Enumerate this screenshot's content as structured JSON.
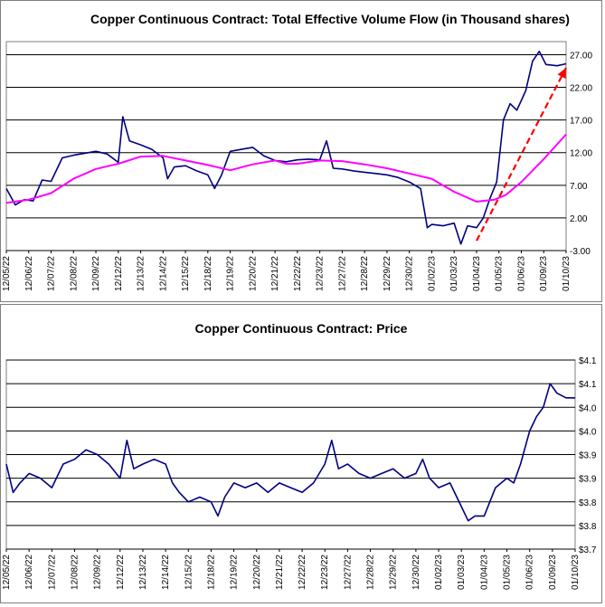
{
  "chart_data": [
    {
      "type": "line",
      "title": "Copper Continuous Contract: Total Effective Volume Flow (in Thousand shares)",
      "xlabel": "",
      "ylabel": "",
      "ylim": [
        -3.0,
        29.0
      ],
      "y_ticks": [
        "27.00",
        "22.00",
        "17.00",
        "12.00",
        "7.00",
        "2.00",
        "-3.00"
      ],
      "y_tick_values": [
        27,
        22,
        17,
        12,
        7,
        2,
        -3
      ],
      "grid": true,
      "x_ticks": [
        "12/05/22",
        "12/06/22",
        "12/07/22",
        "12/08/22",
        "12/09/22",
        "12/12/22",
        "12/13/22",
        "12/14/22",
        "12/15/22",
        "12/18/22",
        "12/19/22",
        "12/20/22",
        "12/21/22",
        "12/22/22",
        "12/23/22",
        "12/27/22",
        "12/28/22",
        "12/29/22",
        "12/30/22",
        "01/02/23",
        "01/03/23",
        "01/04/23",
        "01/05/23",
        "01/06/23",
        "01/09/23",
        "01/10/23"
      ],
      "series": [
        {
          "color": "#000080",
          "points": [
            [
              0,
              6.5
            ],
            [
              0.4,
              4.0
            ],
            [
              0.8,
              4.8
            ],
            [
              1.2,
              4.6
            ],
            [
              1.6,
              7.8
            ],
            [
              2.0,
              7.6
            ],
            [
              2.5,
              11.2
            ],
            [
              3.0,
              11.6
            ],
            [
              3.5,
              11.9
            ],
            [
              4.0,
              12.2
            ],
            [
              4.5,
              11.8
            ],
            [
              5.0,
              10.5
            ],
            [
              5.2,
              17.5
            ],
            [
              5.5,
              13.8
            ],
            [
              6.0,
              13.2
            ],
            [
              6.5,
              12.5
            ],
            [
              7.0,
              11.2
            ],
            [
              7.2,
              8.0
            ],
            [
              7.5,
              9.8
            ],
            [
              8.0,
              10.0
            ],
            [
              8.5,
              9.2
            ],
            [
              9.0,
              8.6
            ],
            [
              9.3,
              6.5
            ],
            [
              9.6,
              8.5
            ],
            [
              10.0,
              12.2
            ],
            [
              10.5,
              12.5
            ],
            [
              11.0,
              12.8
            ],
            [
              11.5,
              11.5
            ],
            [
              12.0,
              10.8
            ],
            [
              12.5,
              10.6
            ],
            [
              13.0,
              10.9
            ],
            [
              13.5,
              11.0
            ],
            [
              14.0,
              10.9
            ],
            [
              14.3,
              13.8
            ],
            [
              14.6,
              9.6
            ],
            [
              15.0,
              9.5
            ],
            [
              15.5,
              9.2
            ],
            [
              16.0,
              9.0
            ],
            [
              16.5,
              8.8
            ],
            [
              17.0,
              8.6
            ],
            [
              17.5,
              8.2
            ],
            [
              18.0,
              7.5
            ],
            [
              18.5,
              6.5
            ],
            [
              18.8,
              0.5
            ],
            [
              19.0,
              1.0
            ],
            [
              19.5,
              0.8
            ],
            [
              20.0,
              1.2
            ],
            [
              20.3,
              -2.0
            ],
            [
              20.6,
              0.8
            ],
            [
              21.0,
              0.5
            ],
            [
              21.3,
              2.0
            ],
            [
              21.6,
              5.0
            ],
            [
              21.9,
              7.5
            ],
            [
              22.2,
              17.0
            ],
            [
              22.5,
              19.5
            ],
            [
              22.8,
              18.5
            ],
            [
              23.0,
              20.0
            ],
            [
              23.2,
              21.5
            ],
            [
              23.5,
              26.0
            ],
            [
              23.8,
              27.5
            ],
            [
              24.1,
              25.5
            ],
            [
              24.6,
              25.3
            ],
            [
              25.0,
              25.6
            ]
          ]
        },
        {
          "color": "#ff00ff",
          "points": [
            [
              0,
              4.3
            ],
            [
              1.0,
              4.8
            ],
            [
              2.0,
              5.8
            ],
            [
              3.0,
              8.0
            ],
            [
              4.0,
              9.5
            ],
            [
              5.0,
              10.3
            ],
            [
              6.0,
              11.4
            ],
            [
              7.0,
              11.5
            ],
            [
              8.0,
              10.8
            ],
            [
              9.0,
              10.1
            ],
            [
              10.0,
              9.3
            ],
            [
              11.0,
              10.2
            ],
            [
              12.0,
              10.8
            ],
            [
              12.5,
              10.3
            ],
            [
              13.0,
              10.3
            ],
            [
              14.0,
              10.8
            ],
            [
              15.0,
              10.7
            ],
            [
              16.0,
              10.2
            ],
            [
              17.0,
              9.6
            ],
            [
              18.0,
              8.8
            ],
            [
              19.0,
              8.0
            ],
            [
              20.0,
              6.0
            ],
            [
              21.0,
              4.5
            ],
            [
              21.8,
              4.8
            ],
            [
              22.3,
              5.5
            ],
            [
              23.0,
              7.5
            ],
            [
              24.0,
              11.0
            ],
            [
              25.0,
              14.8
            ]
          ]
        }
      ],
      "annotations": [
        {
          "type": "trend-arrow",
          "color": "#ff0000",
          "from": [
            21.0,
            -1.5
          ],
          "to": [
            25.0,
            25.0
          ]
        }
      ]
    },
    {
      "type": "line",
      "title": "Copper Continuous Contract: Price",
      "xlabel": "",
      "ylabel": "",
      "ylim": [
        3.7,
        4.1
      ],
      "y_ticks": [
        "$4.1",
        "$4.1",
        "$4.0",
        "$4.0",
        "$3.9",
        "$3.9",
        "$3.8",
        "$3.8",
        "$3.7"
      ],
      "y_tick_values": [
        4.1,
        4.05,
        4.0,
        3.95,
        3.9,
        3.85,
        3.8,
        3.75,
        3.7
      ],
      "grid": true,
      "x_ticks": [
        "12/05/22",
        "12/06/22",
        "12/07/22",
        "12/08/22",
        "12/09/22",
        "12/12/22",
        "12/13/22",
        "12/14/22",
        "12/15/22",
        "12/18/22",
        "12/19/22",
        "12/20/22",
        "12/21/22",
        "12/22/22",
        "12/23/22",
        "12/27/22",
        "12/28/22",
        "12/29/22",
        "12/30/22",
        "01/02/23",
        "01/03/23",
        "01/04/23",
        "01/05/23",
        "01/06/23",
        "01/09/23",
        "01/10/23"
      ],
      "series": [
        {
          "color": "#000080",
          "points": [
            [
              0,
              3.88
            ],
            [
              0.3,
              3.82
            ],
            [
              0.6,
              3.84
            ],
            [
              1.0,
              3.86
            ],
            [
              1.5,
              3.85
            ],
            [
              2.0,
              3.83
            ],
            [
              2.5,
              3.88
            ],
            [
              3.0,
              3.89
            ],
            [
              3.5,
              3.91
            ],
            [
              4.0,
              3.9
            ],
            [
              4.5,
              3.88
            ],
            [
              5.0,
              3.85
            ],
            [
              5.3,
              3.93
            ],
            [
              5.6,
              3.87
            ],
            [
              6.0,
              3.88
            ],
            [
              6.5,
              3.89
            ],
            [
              7.0,
              3.88
            ],
            [
              7.3,
              3.84
            ],
            [
              7.6,
              3.82
            ],
            [
              8.0,
              3.8
            ],
            [
              8.5,
              3.81
            ],
            [
              9.0,
              3.8
            ],
            [
              9.3,
              3.77
            ],
            [
              9.6,
              3.81
            ],
            [
              10.0,
              3.84
            ],
            [
              10.5,
              3.83
            ],
            [
              11.0,
              3.84
            ],
            [
              11.5,
              3.82
            ],
            [
              12.0,
              3.84
            ],
            [
              12.5,
              3.83
            ],
            [
              13.0,
              3.82
            ],
            [
              13.5,
              3.84
            ],
            [
              14.0,
              3.88
            ],
            [
              14.3,
              3.93
            ],
            [
              14.6,
              3.87
            ],
            [
              15.0,
              3.88
            ],
            [
              15.5,
              3.86
            ],
            [
              16.0,
              3.85
            ],
            [
              16.5,
              3.86
            ],
            [
              17.0,
              3.87
            ],
            [
              17.5,
              3.85
            ],
            [
              18.0,
              3.86
            ],
            [
              18.3,
              3.89
            ],
            [
              18.6,
              3.85
            ],
            [
              19.0,
              3.83
            ],
            [
              19.5,
              3.84
            ],
            [
              20.0,
              3.79
            ],
            [
              20.3,
              3.76
            ],
            [
              20.6,
              3.77
            ],
            [
              21.0,
              3.77
            ],
            [
              21.5,
              3.83
            ],
            [
              22.0,
              3.85
            ],
            [
              22.3,
              3.84
            ],
            [
              22.6,
              3.88
            ],
            [
              23.0,
              3.95
            ],
            [
              23.3,
              3.98
            ],
            [
              23.6,
              4.0
            ],
            [
              23.9,
              4.05
            ],
            [
              24.2,
              4.03
            ],
            [
              24.6,
              4.02
            ],
            [
              25.0,
              4.02
            ]
          ]
        }
      ]
    }
  ]
}
